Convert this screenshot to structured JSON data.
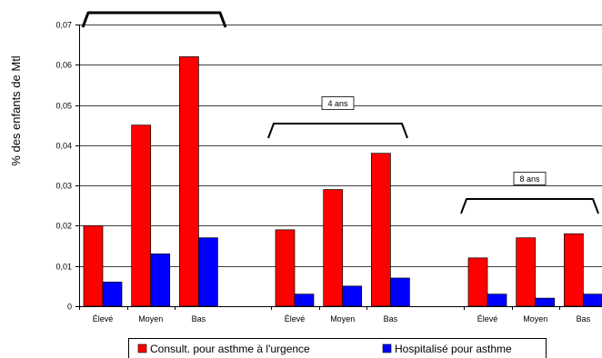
{
  "chart_data": {
    "type": "bar",
    "ylabel": "% des enfants de Mtl",
    "xlabel": "",
    "ylim": [
      0,
      0.07
    ],
    "yticks": [
      "0",
      "0,01",
      "0,02",
      "0,03",
      "0,04",
      "0,05",
      "0,06",
      "0,07"
    ],
    "grid": true,
    "legend_position": "bottom",
    "categories": [
      "Élevé",
      "Moyen",
      "Bas",
      "Élevé",
      "Moyen",
      "Bas",
      "Élevé",
      "Moyen",
      "Bas"
    ],
    "groups": [
      {
        "label": "",
        "categories": [
          "Élevé",
          "Moyen",
          "Bas"
        ]
      },
      {
        "label": "4 ans",
        "categories": [
          "Élevé",
          "Moyen",
          "Bas"
        ]
      },
      {
        "label": "8 ans",
        "categories": [
          "Élevé",
          "Moyen",
          "Bas"
        ]
      }
    ],
    "series": [
      {
        "name": "Consult. pour asthme à l'urgence",
        "color": "#ff0000",
        "values": [
          0.02,
          0.045,
          0.062,
          0.019,
          0.029,
          0.038,
          0.012,
          0.017,
          0.018
        ]
      },
      {
        "name": "Hospitalisé pour asthme",
        "color": "#0000ff",
        "values": [
          0.006,
          0.013,
          0.017,
          0.003,
          0.005,
          0.007,
          0.003,
          0.002,
          0.003
        ]
      }
    ]
  }
}
